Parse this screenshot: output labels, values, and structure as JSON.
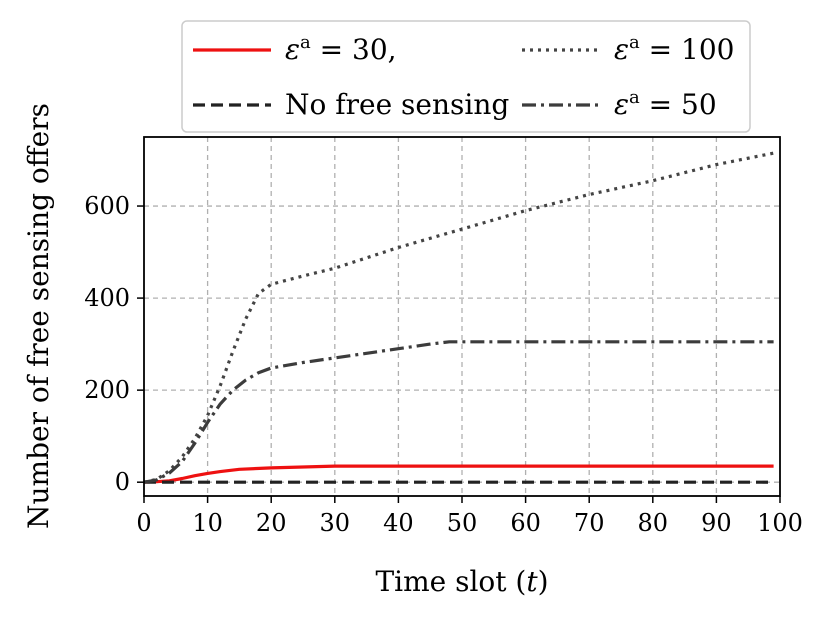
{
  "chart_data": {
    "type": "line",
    "xlabel": "Time slot (t)",
    "xlabel_parts": {
      "prefix": "Time slot (",
      "var": "t",
      "suffix": ")"
    },
    "ylabel": "Number of free sensing offers",
    "xlim": [
      0,
      100
    ],
    "ylim": [
      -30,
      750
    ],
    "xticks": [
      0,
      10,
      20,
      30,
      40,
      50,
      60,
      70,
      80,
      90,
      100
    ],
    "yticks": [
      0,
      200,
      400,
      600
    ],
    "grid": true,
    "legend_position": "top-center",
    "series": [
      {
        "name": "εᵃ = 30,",
        "label_base": "ε",
        "label_sup": "a",
        "label_rest": " = 30,",
        "color": "#ee1111",
        "style": "solid",
        "x": [
          0,
          2,
          4,
          6,
          8,
          10,
          12,
          15,
          20,
          25,
          30,
          40,
          60,
          80,
          99
        ],
        "y": [
          0,
          1,
          3,
          8,
          14,
          19,
          23,
          28,
          31,
          33,
          35,
          35,
          35,
          35,
          35
        ]
      },
      {
        "name": "No free sensing",
        "label_base": "No free sensing",
        "label_sup": "",
        "label_rest": "",
        "color": "#222222",
        "style": "dashed",
        "x": [
          0,
          99
        ],
        "y": [
          0,
          0
        ]
      },
      {
        "name": "εᵃ = 100",
        "label_base": "ε",
        "label_sup": "a",
        "label_rest": " = 100",
        "color": "#444444",
        "style": "dotted",
        "x": [
          0,
          2,
          4,
          6,
          8,
          10,
          12,
          14,
          16,
          18,
          20,
          25,
          30,
          40,
          50,
          60,
          70,
          80,
          90,
          99
        ],
        "y": [
          0,
          6,
          25,
          55,
          95,
          145,
          210,
          285,
          355,
          410,
          430,
          448,
          465,
          510,
          550,
          590,
          625,
          655,
          690,
          715
        ]
      },
      {
        "name": "εᵃ = 50",
        "label_base": "ε",
        "label_sup": "a",
        "label_rest": " = 50",
        "color": "#3c3c3c",
        "style": "dashdot",
        "x": [
          0,
          2,
          4,
          6,
          8,
          10,
          12,
          14,
          16,
          18,
          20,
          25,
          30,
          35,
          40,
          45,
          48,
          50,
          60,
          70,
          80,
          90,
          99
        ],
        "y": [
          0,
          5,
          20,
          45,
          85,
          130,
          170,
          200,
          222,
          238,
          248,
          260,
          270,
          280,
          290,
          300,
          305,
          305,
          305,
          305,
          305,
          305,
          305
        ]
      }
    ]
  }
}
